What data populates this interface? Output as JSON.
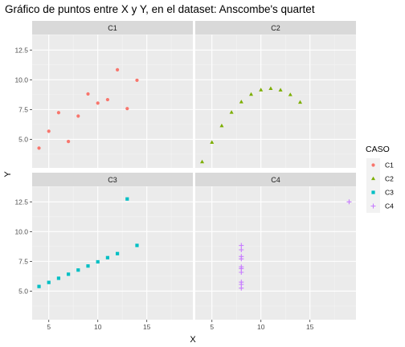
{
  "chart_data": {
    "type": "scatter",
    "title": "Gráfico de puntos entre X y Y, en el dataset: Anscombe's quartet",
    "xlabel": "X",
    "ylabel": "Y",
    "facets": [
      "C1",
      "C2",
      "C3",
      "C4"
    ],
    "xlim": [
      3.3,
      19.7
    ],
    "ylim": [
      2.6,
      13.8
    ],
    "x_ticks": [
      5,
      10,
      15
    ],
    "y_ticks": [
      5.0,
      7.5,
      10.0,
      12.5
    ],
    "x_tick_labels": [
      "5",
      "10",
      "15"
    ],
    "y_tick_labels": [
      "5.0",
      "7.5",
      "10.0",
      "12.5"
    ],
    "grid": true,
    "legend": {
      "title": "CASO",
      "position": "right",
      "entries": [
        "C1",
        "C2",
        "C3",
        "C4"
      ]
    },
    "series": [
      {
        "name": "C1",
        "color": "#F8766D",
        "shape": "circle",
        "points": [
          [
            10,
            8.04
          ],
          [
            8,
            6.95
          ],
          [
            13,
            7.58
          ],
          [
            9,
            8.81
          ],
          [
            11,
            8.33
          ],
          [
            14,
            9.96
          ],
          [
            6,
            7.24
          ],
          [
            4,
            4.26
          ],
          [
            12,
            10.84
          ],
          [
            7,
            4.82
          ],
          [
            5,
            5.68
          ]
        ]
      },
      {
        "name": "C2",
        "color": "#7CAE00",
        "shape": "triangle",
        "points": [
          [
            10,
            9.14
          ],
          [
            8,
            8.14
          ],
          [
            13,
            8.74
          ],
          [
            9,
            8.77
          ],
          [
            11,
            9.26
          ],
          [
            14,
            8.1
          ],
          [
            6,
            6.13
          ],
          [
            4,
            3.1
          ],
          [
            12,
            9.13
          ],
          [
            7,
            7.26
          ],
          [
            5,
            4.74
          ]
        ]
      },
      {
        "name": "C3",
        "color": "#00BFC4",
        "shape": "square",
        "points": [
          [
            10,
            7.46
          ],
          [
            8,
            6.77
          ],
          [
            13,
            12.74
          ],
          [
            9,
            7.11
          ],
          [
            11,
            7.81
          ],
          [
            14,
            8.84
          ],
          [
            6,
            6.08
          ],
          [
            4,
            5.39
          ],
          [
            12,
            8.15
          ],
          [
            7,
            6.42
          ],
          [
            5,
            5.73
          ]
        ]
      },
      {
        "name": "C4",
        "color": "#C77CFF",
        "shape": "plus",
        "points": [
          [
            8,
            6.58
          ],
          [
            8,
            5.76
          ],
          [
            8,
            7.71
          ],
          [
            8,
            8.84
          ],
          [
            8,
            8.47
          ],
          [
            8,
            7.04
          ],
          [
            8,
            5.25
          ],
          [
            19,
            12.5
          ],
          [
            8,
            5.56
          ],
          [
            8,
            7.91
          ],
          [
            8,
            6.89
          ]
        ]
      }
    ]
  }
}
